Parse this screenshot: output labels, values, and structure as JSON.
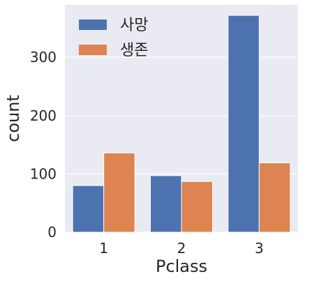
{
  "chart_data": {
    "type": "bar",
    "xlabel": "Pclass",
    "ylabel": "count",
    "categories": [
      "1",
      "2",
      "3"
    ],
    "series": [
      {
        "name": "사망",
        "values": [
          80,
          97,
          372
        ],
        "color": "#4c72b0"
      },
      {
        "name": "생존",
        "values": [
          136,
          87,
          119
        ],
        "color": "#dd8452"
      }
    ],
    "yticks": [
      0,
      100,
      200,
      300
    ],
    "ylim": [
      0,
      390
    ],
    "grid": true,
    "legend_position": "top-left",
    "background": "#eaeaf2"
  }
}
